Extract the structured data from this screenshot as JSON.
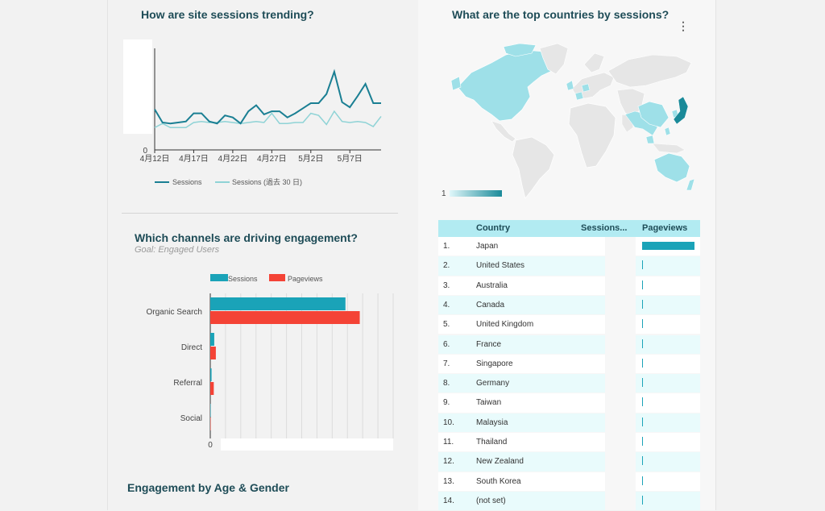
{
  "line_chart": {
    "title": "How are site sessions trending?",
    "y_zero": "0",
    "x_ticks": [
      "4月12日",
      "4月17日",
      "4月22日",
      "4月27日",
      "5月2日",
      "5月7日"
    ],
    "legend": [
      "Sessions",
      "Sessions (過去 30 日)"
    ],
    "colors": {
      "sessions": "#1a7f93",
      "previous": "#8fd3d6"
    },
    "chart_data": {
      "type": "line",
      "x": [
        "4月12日",
        "4月13日",
        "4月14日",
        "4月15日",
        "4月16日",
        "4月17日",
        "4月18日",
        "4月19日",
        "4月20日",
        "4月21日",
        "4月22日",
        "4月23日",
        "4月24日",
        "4月25日",
        "4月26日",
        "4月27日",
        "4月28日",
        "4月29日",
        "4月30日",
        "5月1日",
        "5月2日",
        "5月3日",
        "5月4日",
        "5月5日",
        "5月6日",
        "5月7日",
        "5月8日",
        "5月9日",
        "5月10日",
        "5月11日"
      ],
      "series": [
        {
          "name": "Sessions",
          "values": [
            40,
            27,
            26,
            27,
            28,
            36,
            36,
            28,
            26,
            34,
            32,
            26,
            38,
            44,
            35,
            38,
            38,
            32,
            36,
            41,
            46,
            46,
            55,
            77,
            47,
            42,
            53,
            65,
            46,
            46
          ]
        },
        {
          "name": "Sessions (過去 30 日)",
          "values": [
            22,
            26,
            22,
            22,
            22,
            27,
            28,
            27,
            27,
            28,
            27,
            26,
            27,
            28,
            27,
            36,
            26,
            26,
            27,
            27,
            36,
            34,
            25,
            38,
            28,
            27,
            28,
            27,
            23,
            33
          ]
        }
      ],
      "ylim": [
        0,
        100
      ]
    }
  },
  "bar_chart": {
    "title": "Which channels are driving engagement?",
    "subtitle": "Goal: Engaged Users",
    "zero": "0",
    "colors": {
      "sessions": "#1aa3b8",
      "pageviews": "#f44336"
    },
    "chart_data": {
      "type": "bar",
      "categories": [
        "Organic Search",
        "Direct",
        "Referral",
        "Social"
      ],
      "series": [
        {
          "name": "Sessions",
          "values": [
            850,
            25,
            8,
            1
          ]
        },
        {
          "name": "Pageviews",
          "values": [
            940,
            35,
            22,
            1
          ]
        }
      ],
      "xlim": [
        0,
        1150
      ]
    }
  },
  "age_gender": {
    "title": "Engagement by Age & Gender"
  },
  "map": {
    "title": "What are the top countries by sessions?",
    "legend_min": "1",
    "more_icon": "kebab-menu-icon",
    "colors": {
      "land": "#e6e6e6",
      "highlight": "#9ee0e8",
      "top": "#1a8a99"
    }
  },
  "table": {
    "headers": [
      "Country",
      "Sessions...",
      "Pageviews"
    ],
    "rows": [
      {
        "rank": "1.",
        "country": "Japan",
        "pv": 100
      },
      {
        "rank": "2.",
        "country": "United States",
        "pv": 1
      },
      {
        "rank": "3.",
        "country": "Australia",
        "pv": 1
      },
      {
        "rank": "4.",
        "country": "Canada",
        "pv": 1
      },
      {
        "rank": "5.",
        "country": "United Kingdom",
        "pv": 1
      },
      {
        "rank": "6.",
        "country": "France",
        "pv": 1
      },
      {
        "rank": "7.",
        "country": "Singapore",
        "pv": 1
      },
      {
        "rank": "8.",
        "country": "Germany",
        "pv": 1
      },
      {
        "rank": "9.",
        "country": "Taiwan",
        "pv": 1
      },
      {
        "rank": "10.",
        "country": "Malaysia",
        "pv": 1
      },
      {
        "rank": "11.",
        "country": "Thailand",
        "pv": 1
      },
      {
        "rank": "12.",
        "country": "New Zealand",
        "pv": 1
      },
      {
        "rank": "13.",
        "country": "South Korea",
        "pv": 1
      },
      {
        "rank": "14.",
        "country": "(not set)",
        "pv": 1
      }
    ],
    "colors": {
      "header": "#b2ebf2",
      "alt": "#e9fbfc",
      "bar": "#1aa3b8"
    }
  }
}
